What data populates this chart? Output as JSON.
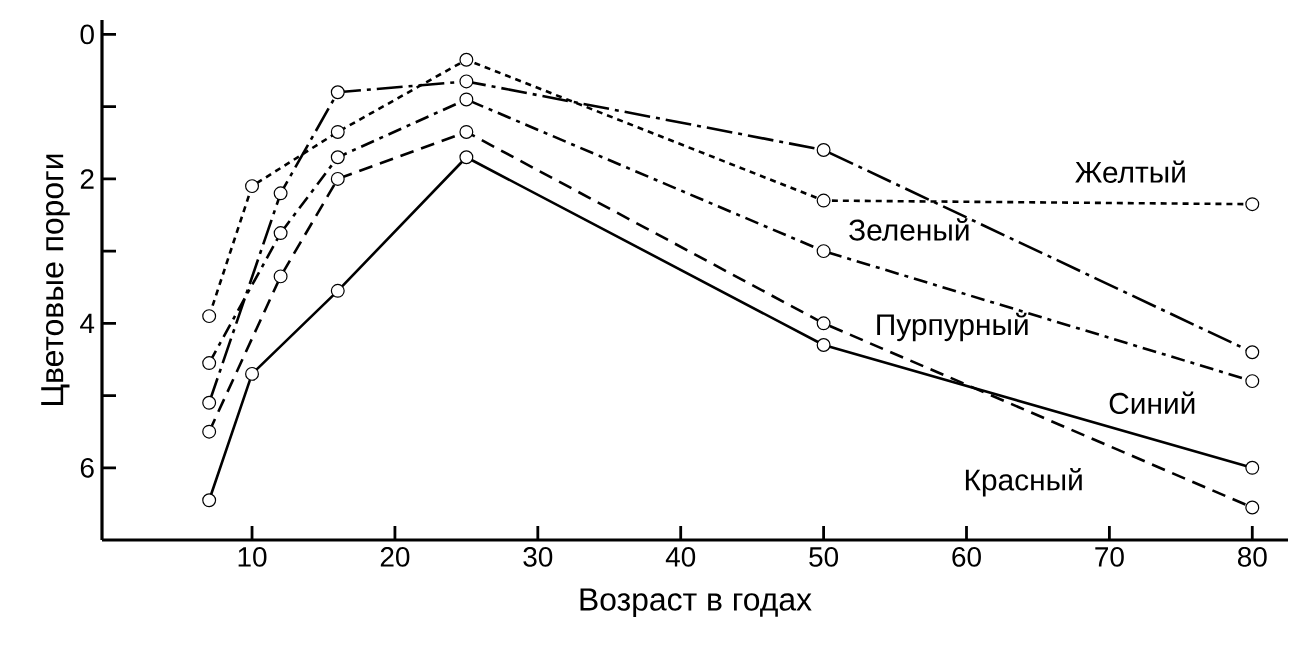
{
  "chart_data": {
    "type": "line",
    "xlabel": "Возраст в годах",
    "ylabel": "Цветовые пороги",
    "xlim": [
      -0.5,
      82.5
    ],
    "ylim": [
      7,
      -0.2
    ],
    "xticks": [
      10,
      20,
      30,
      40,
      50,
      60,
      70,
      80
    ],
    "yticks": [
      0,
      {
        "value": 1,
        "label": null
      },
      2,
      {
        "value": 3,
        "label": null
      },
      4,
      {
        "value": 5,
        "label": null
      },
      6
    ],
    "marker": "circle",
    "series": [
      {
        "name": "Желтый",
        "color": "#000000",
        "line_style": "dotted",
        "x": [
          7,
          10,
          16,
          25,
          50,
          80
        ],
        "values": [
          3.9,
          2.1,
          1.35,
          0.35,
          2.3,
          2.35
        ]
      },
      {
        "name": "Зеленый",
        "color": "#000000",
        "line_style": "longdashdot",
        "x": [
          7,
          12,
          16,
          25,
          50,
          80
        ],
        "values": [
          5.1,
          2.2,
          0.8,
          0.65,
          1.6,
          4.4
        ]
      },
      {
        "name": "Пурпурный",
        "color": "#000000",
        "line_style": "dashdot",
        "x": [
          7,
          12,
          16,
          25,
          50,
          80
        ],
        "values": [
          4.55,
          2.75,
          1.7,
          0.9,
          3.0,
          4.8
        ]
      },
      {
        "name": "Красный",
        "color": "#000000",
        "line_style": "dashed",
        "x": [
          7,
          12,
          16,
          25,
          50,
          80
        ],
        "values": [
          5.5,
          3.35,
          2.0,
          1.35,
          4.0,
          6.55
        ]
      },
      {
        "name": "Синий",
        "color": "#000000",
        "line_style": "solid",
        "x": [
          7,
          10,
          16,
          25,
          50,
          80
        ],
        "values": [
          6.45,
          4.7,
          3.55,
          1.7,
          4.3,
          6.0
        ]
      }
    ]
  }
}
